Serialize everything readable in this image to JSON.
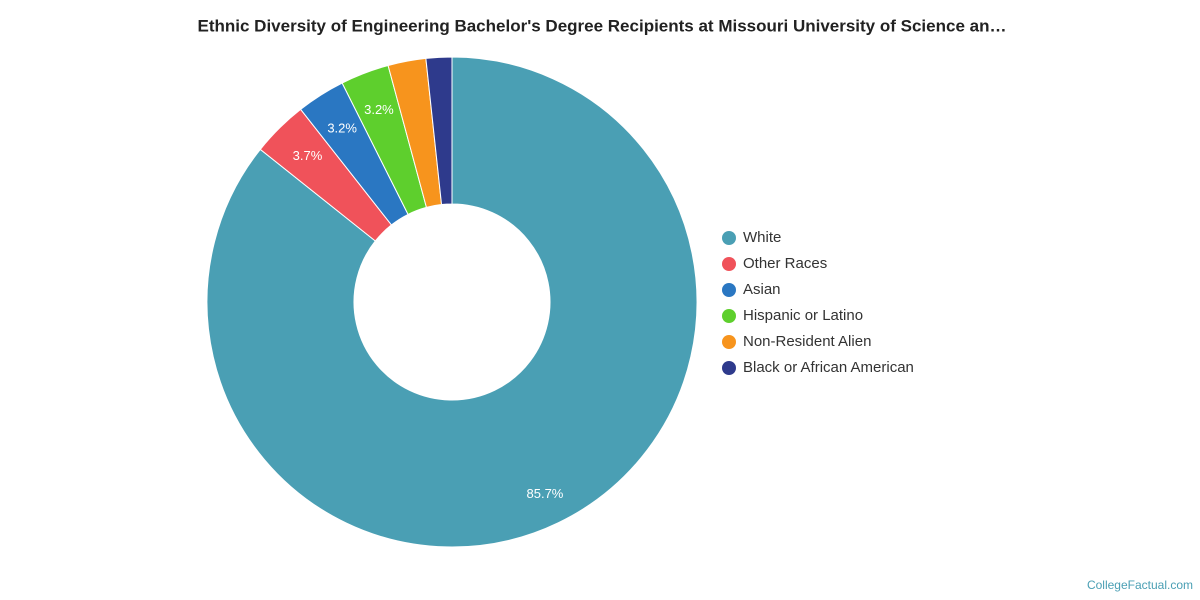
{
  "chart_data": {
    "type": "donut",
    "title": "Ethnic Diversity of Engineering Bachelor's Degree Recipients at Missouri University of Science an…",
    "categories": [
      "White",
      "Other Races",
      "Asian",
      "Hispanic or Latino",
      "Non-Resident Alien",
      "Black or African American"
    ],
    "values": [
      85.7,
      3.7,
      3.2,
      3.2,
      2.5,
      1.7
    ],
    "value_labels": [
      "85.7%",
      "3.7%",
      "3.2%",
      "3.2%",
      null,
      null
    ],
    "colors": [
      "#4a9fb4",
      "#f0525a",
      "#2a77c2",
      "#5ecf2d",
      "#f7941d",
      "#2e3a8c"
    ],
    "legend": "right",
    "source": "CollegeFactual.com"
  }
}
